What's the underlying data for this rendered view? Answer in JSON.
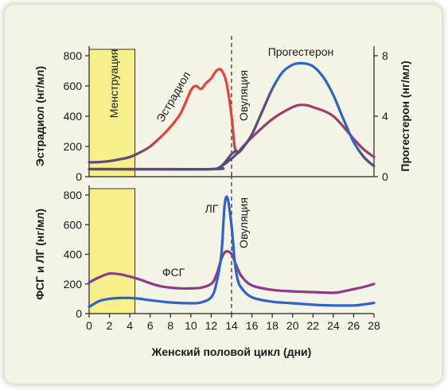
{
  "colors": {
    "background": "#f4f4e6",
    "menstruation_fill": "#f7f08a",
    "estradiol_rise": "#e8433a",
    "progesterone": "#2f63c9",
    "baseline": "#5b4a7a",
    "plum": "#9a3f6f",
    "fsh_lh": "#8e3a8a"
  },
  "x_axis": {
    "label": "Женский половой цикл (дни)",
    "ticks": [
      "0",
      "2",
      "4",
      "6",
      "8",
      "10",
      "12",
      "14",
      "16",
      "18",
      "20",
      "22",
      "24",
      "26",
      "28"
    ]
  },
  "annotations": {
    "menstruation": "Менструация",
    "estradiol": "Эстрадиол",
    "progesterone": "Прогестерон",
    "ovulation_top": "Овуляция",
    "ovulation_bottom": "Овуляция",
    "lh": "ЛГ",
    "fsh": "ФСГ"
  },
  "chart_data": [
    {
      "type": "line",
      "ylabel": "Эстрадиол (нг/мл)",
      "ylabel_right": "Прогестерон (нг/мл)",
      "xlim": [
        0,
        28
      ],
      "ylim": [
        0,
        800
      ],
      "ylim_right": [
        0,
        8
      ],
      "yticks": [
        "0",
        "200",
        "400",
        "600",
        "800"
      ],
      "yticks_right": [
        "0",
        "4",
        "8"
      ],
      "menstruation": [
        0,
        4.5
      ],
      "ovulation_day": 14,
      "series": [
        {
          "color_key": "estradiol_rise",
          "axis": "left",
          "x": [
            0,
            1,
            2,
            3,
            4,
            5,
            6,
            7,
            8,
            9,
            10,
            10.5,
            11,
            11.5,
            12,
            12.5,
            13,
            13.5,
            14,
            14.3,
            14.6,
            15,
            16,
            18,
            20,
            21,
            22,
            24,
            26,
            27,
            28
          ],
          "y": [
            95,
            97,
            103,
            115,
            130,
            160,
            200,
            260,
            330,
            420,
            570,
            600,
            580,
            620,
            650,
            700,
            705,
            620,
            400,
            200,
            160,
            190,
            260,
            380,
            460,
            475,
            460,
            400,
            250,
            180,
            130
          ]
        },
        {
          "color_key": "progesterone",
          "axis": "right",
          "x": [
            0,
            4,
            8,
            12,
            13,
            14,
            14.5,
            15,
            16,
            17,
            18,
            19,
            20,
            21,
            22,
            23,
            24,
            25,
            26,
            27,
            28
          ],
          "y": [
            0.5,
            0.5,
            0.5,
            0.5,
            0.7,
            1.2,
            1.5,
            1.8,
            2.8,
            4.3,
            5.8,
            6.9,
            7.4,
            7.5,
            7.3,
            6.6,
            5.4,
            3.8,
            2.3,
            1.3,
            0.7
          ]
        },
        {
          "color_key": "baseline",
          "axis": "left",
          "x": [
            0,
            12,
            13,
            14,
            14.5
          ],
          "y": [
            50,
            50,
            70,
            150,
            170
          ]
        }
      ]
    },
    {
      "type": "line",
      "ylabel": "ФСГ и ЛГ (нг/мл)",
      "xlim": [
        0,
        28
      ],
      "ylim": [
        0,
        800
      ],
      "yticks": [
        "0",
        "200",
        "400",
        "600",
        "800"
      ],
      "menstruation": [
        0,
        4.5
      ],
      "ovulation_day": 14,
      "series": [
        {
          "name": "ФСГ",
          "color_key": "fsh_lh",
          "x": [
            0,
            1,
            2,
            3,
            4,
            5,
            6,
            7,
            8,
            9,
            10,
            11,
            12,
            12.5,
            13,
            13.3,
            13.6,
            14,
            14.5,
            15,
            16,
            18,
            20,
            22,
            24,
            25,
            26,
            27,
            28
          ],
          "y": [
            210,
            245,
            270,
            265,
            250,
            230,
            205,
            185,
            175,
            170,
            170,
            175,
            200,
            260,
            370,
            410,
            420,
            400,
            320,
            250,
            190,
            160,
            150,
            145,
            140,
            150,
            165,
            180,
            200
          ]
        },
        {
          "name": "ЛГ",
          "color_key": "progesterone",
          "x": [
            0,
            1,
            2,
            3,
            4,
            5,
            6,
            8,
            10,
            11,
            12,
            12.5,
            13,
            13.3,
            13.6,
            14,
            14.3,
            14.6,
            15,
            16,
            18,
            20,
            22,
            24,
            26,
            27,
            28
          ],
          "y": [
            45,
            85,
            100,
            105,
            105,
            100,
            90,
            75,
            70,
            75,
            110,
            200,
            400,
            720,
            780,
            590,
            360,
            230,
            170,
            110,
            80,
            70,
            60,
            55,
            55,
            62,
            72
          ]
        }
      ]
    }
  ]
}
